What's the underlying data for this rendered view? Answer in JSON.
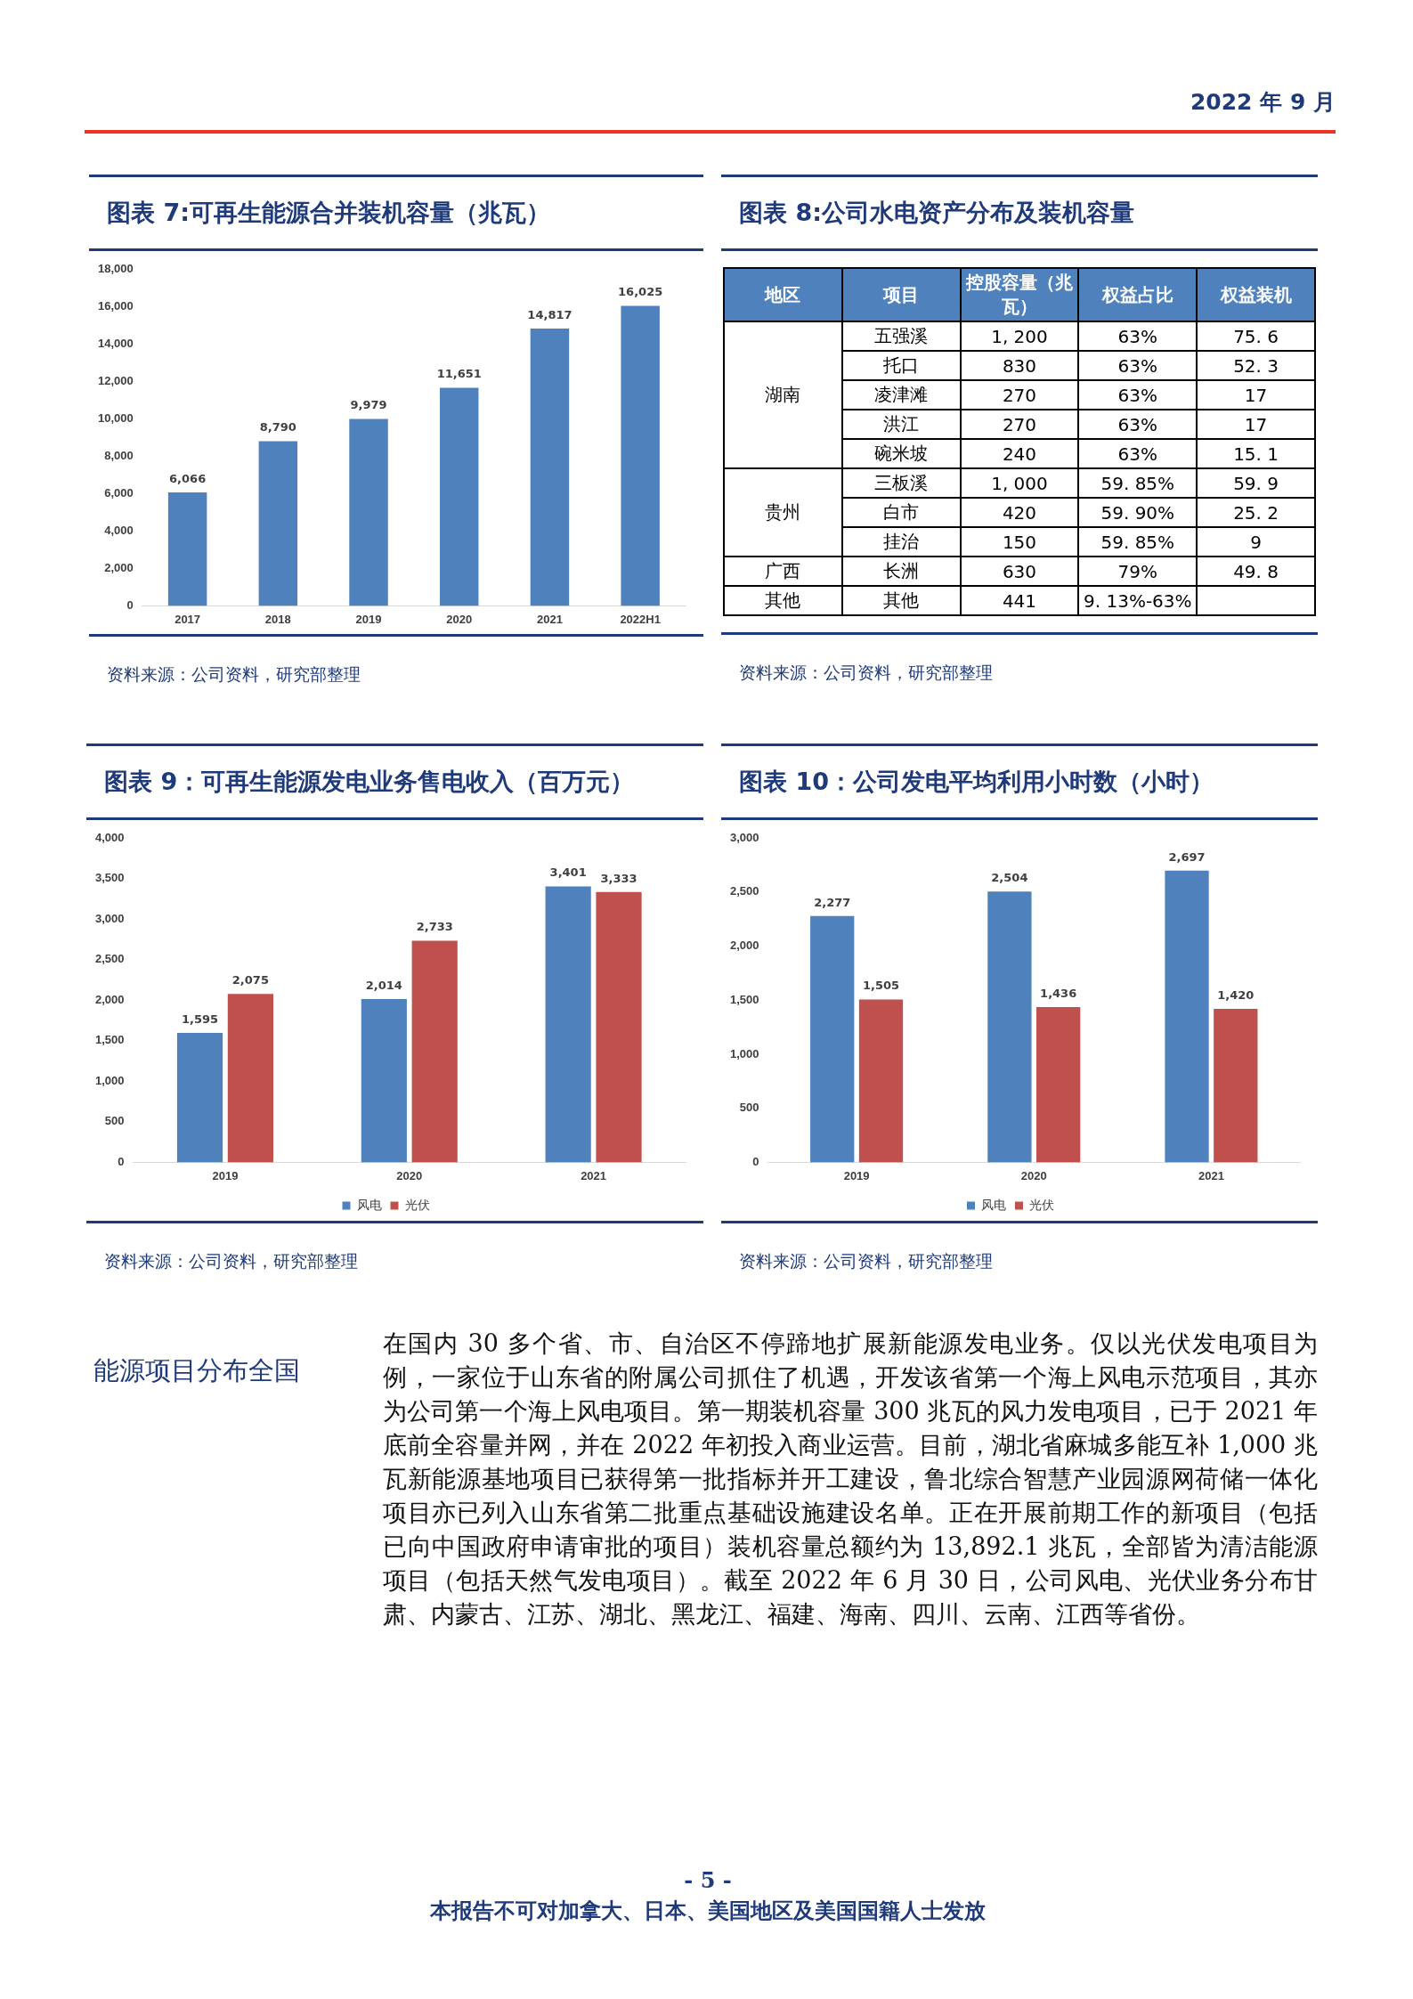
{
  "chart_data": [
    {
      "type": "other",
      "annotations": [
        "2022 年 9 月"
      ]
    },
    {
      "type": "bar",
      "title": "图表 7:可再生能源合并装机容量（兆瓦）",
      "categories": [
        "2017",
        "2018",
        "2019",
        "2020",
        "2021",
        "2022H1"
      ],
      "values": [
        6066,
        8790,
        9979,
        11651,
        14817,
        16025
      ],
      "value_labels": [
        "6,066",
        "8,790",
        "9,979",
        "11,651",
        "14,817",
        "16,025"
      ],
      "color": "#4f81bd",
      "ylim": [
        0,
        18000
      ],
      "yticks": [
        {
          "value": 0,
          "label": "0"
        },
        {
          "value": 2000,
          "label": "2,000"
        },
        {
          "value": 4000,
          "label": "4,000"
        },
        {
          "value": 6000,
          "label": "6,000"
        },
        {
          "value": 8000,
          "label": "8,000"
        },
        {
          "value": 10000,
          "label": "10,000"
        },
        {
          "value": 12000,
          "label": "12,000"
        },
        {
          "value": 14000,
          "label": "14,000"
        },
        {
          "value": 16000,
          "label": "16,000"
        },
        {
          "value": 18000,
          "label": "18,000"
        }
      ],
      "annotations": [
        "资料来源：公司资料，研究部整理"
      ]
    },
    {
      "type": "other",
      "title": "图表 8:公司水电资产分布及装机容量",
      "categories": [
        "地区",
        "项目",
        "控股容量（兆瓦）",
        "权益占比",
        "权益装机"
      ],
      "y_categories": [
        "湖南",
        null,
        null,
        null,
        null,
        "贵州",
        null,
        null,
        "广西",
        "其他"
      ],
      "annotations": [
        "五强溪",
        "1, 200",
        "63%",
        "75. 6",
        "托口",
        "830",
        "63%",
        "52. 3",
        "凌津滩",
        "270",
        "63%",
        "17",
        "洪江",
        "270",
        "63%",
        "17",
        "碗米坡",
        "240",
        "63%",
        "15. 1",
        "三板溪",
        "1, 000",
        "59. 85%",
        "59. 9",
        "白市",
        "420",
        "59. 90%",
        "25. 2",
        "挂治",
        "150",
        "59. 85%",
        "9",
        "长洲",
        "630",
        "79%",
        "49. 8",
        "其他",
        "441",
        "9. 13%-63%",
        null,
        "资料来源：公司资料，研究部整理"
      ]
    },
    {
      "type": "bar",
      "title": "图表 9：可再生能源发电业务售电收入（百万元）",
      "categories": [
        "2019",
        "2020",
        "2021"
      ],
      "series": [
        {
          "name": "风电",
          "color": "#4f81bd",
          "values": [
            1595,
            2014,
            3401
          ],
          "value_labels": [
            "1,595",
            "2,014",
            "3,401"
          ]
        },
        {
          "name": "光伏",
          "color": "#c0504d",
          "values": [
            2075,
            2733,
            3333
          ],
          "value_labels": [
            "2,075",
            "2,733",
            "3,333"
          ]
        }
      ],
      "ylim": [
        0,
        4000
      ],
      "yticks": [
        {
          "value": 0,
          "label": "0"
        },
        {
          "value": 500,
          "label": "500"
        },
        {
          "value": 1000,
          "label": "1,000"
        },
        {
          "value": 1500,
          "label": "1,500"
        },
        {
          "value": 2000,
          "label": "2,000"
        },
        {
          "value": 2500,
          "label": "2,500"
        },
        {
          "value": 3000,
          "label": "3,000"
        },
        {
          "value": 3500,
          "label": "3,500"
        },
        {
          "value": 4000,
          "label": "4,000"
        }
      ],
      "legend": "bottom",
      "annotations": [
        "资料来源：公司资料，研究部整理"
      ]
    },
    {
      "type": "bar",
      "title": "图表 10：公司发电平均利用小时数（小时）",
      "categories": [
        "2019",
        "2020",
        "2021"
      ],
      "series": [
        {
          "name": "风电",
          "color": "#4f81bd",
          "values": [
            2277,
            2504,
            2697
          ],
          "value_labels": [
            "2,277",
            "2,504",
            "2,697"
          ]
        },
        {
          "name": "光伏",
          "color": "#c0504d",
          "values": [
            1505,
            1436,
            1420
          ],
          "value_labels": [
            "1,505",
            "1,436",
            "1,420"
          ]
        }
      ],
      "ylim": [
        0,
        3000
      ],
      "yticks": [
        {
          "value": 0,
          "label": "0"
        },
        {
          "value": 500,
          "label": "500"
        },
        {
          "value": 1000,
          "label": "1,000"
        },
        {
          "value": 1500,
          "label": "1,500"
        },
        {
          "value": 2000,
          "label": "2,000"
        },
        {
          "value": 2500,
          "label": "2,500"
        },
        {
          "value": 3000,
          "label": "3,000"
        }
      ],
      "legend": "bottom",
      "annotations": [
        "资料来源：公司资料，研究部整理"
      ]
    },
    {
      "type": "other",
      "title": "能源项目分布全国",
      "annotations": [
        "在国内 30 多个省、市、自治区不停蹄地扩展新能源发电业务。仅以光伏发电项目为例，一家位于山东省的附属公司抓住了机遇，开发该省第一个海上风电示范项目，其亦为公司第一个海上风电项目。第一期装机容量 300 兆瓦的风力发电项目，已于 2021 年底前全容量并网，并在 2022 年初投入商业运营。目前，湖北省麻城多能互补 1,000 兆瓦新能源基地项目已获得第一批指标并开工建设，鲁北综合智慧产业园源网荷储一体化项目亦已列入山东省第二批重点基础设施建设名单。正在开展前期工作的新项目（包括已向中国政府申请审批的项目）装机容量总额约为 13,892.1 兆瓦，全部皆为清洁能源项目（包括天然气发电项目）。截至 2022 年 6 月 30 日，公司风电、光伏业务分布甘肃、内蒙古、江苏、湖北、黑龙江、福建、海南、四川、云南、江西等省份。"
      ]
    },
    {
      "type": "other",
      "annotations": [
        "- 5 -",
        "本报告不可对加拿大、日本、美国地区及美国国籍人士发放"
      ]
    }
  ]
}
